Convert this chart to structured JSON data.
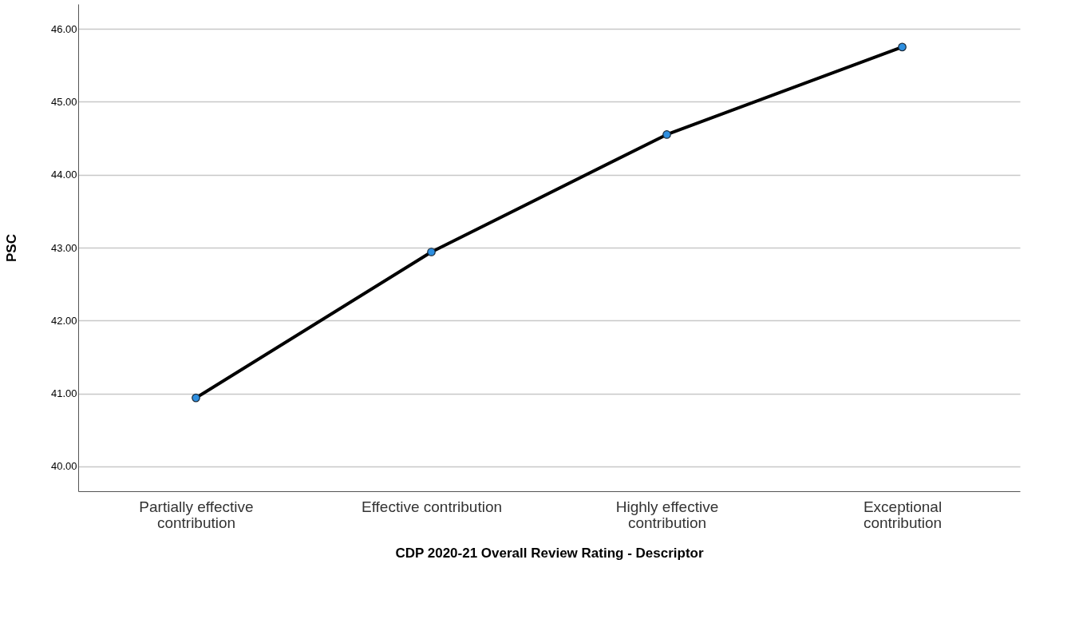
{
  "chart_data": {
    "type": "line",
    "xlabel": "CDP 2020-21 Overall Review Rating - Descriptor",
    "ylabel": "PSC",
    "categories": [
      "Partially effective contribution",
      "Effective contribution",
      "Highly effective contribution",
      "Exceptional contribution"
    ],
    "series": [
      {
        "color": "#000000",
        "values": [
          40.94,
          42.94,
          44.55,
          45.75
        ]
      }
    ],
    "ylim": [
      39.66,
      46.34
    ],
    "yticks": [
      {
        "value": 40,
        "label": "40.00"
      },
      {
        "value": 41,
        "label": "41.00"
      },
      {
        "value": 42,
        "label": "42.00"
      },
      {
        "value": 43,
        "label": "43.00"
      },
      {
        "value": 44,
        "label": "44.00"
      },
      {
        "value": 45,
        "label": "45.00"
      },
      {
        "value": 46,
        "label": "46.00"
      }
    ],
    "grid": "y",
    "marker": "circle",
    "line_style": "solid"
  }
}
